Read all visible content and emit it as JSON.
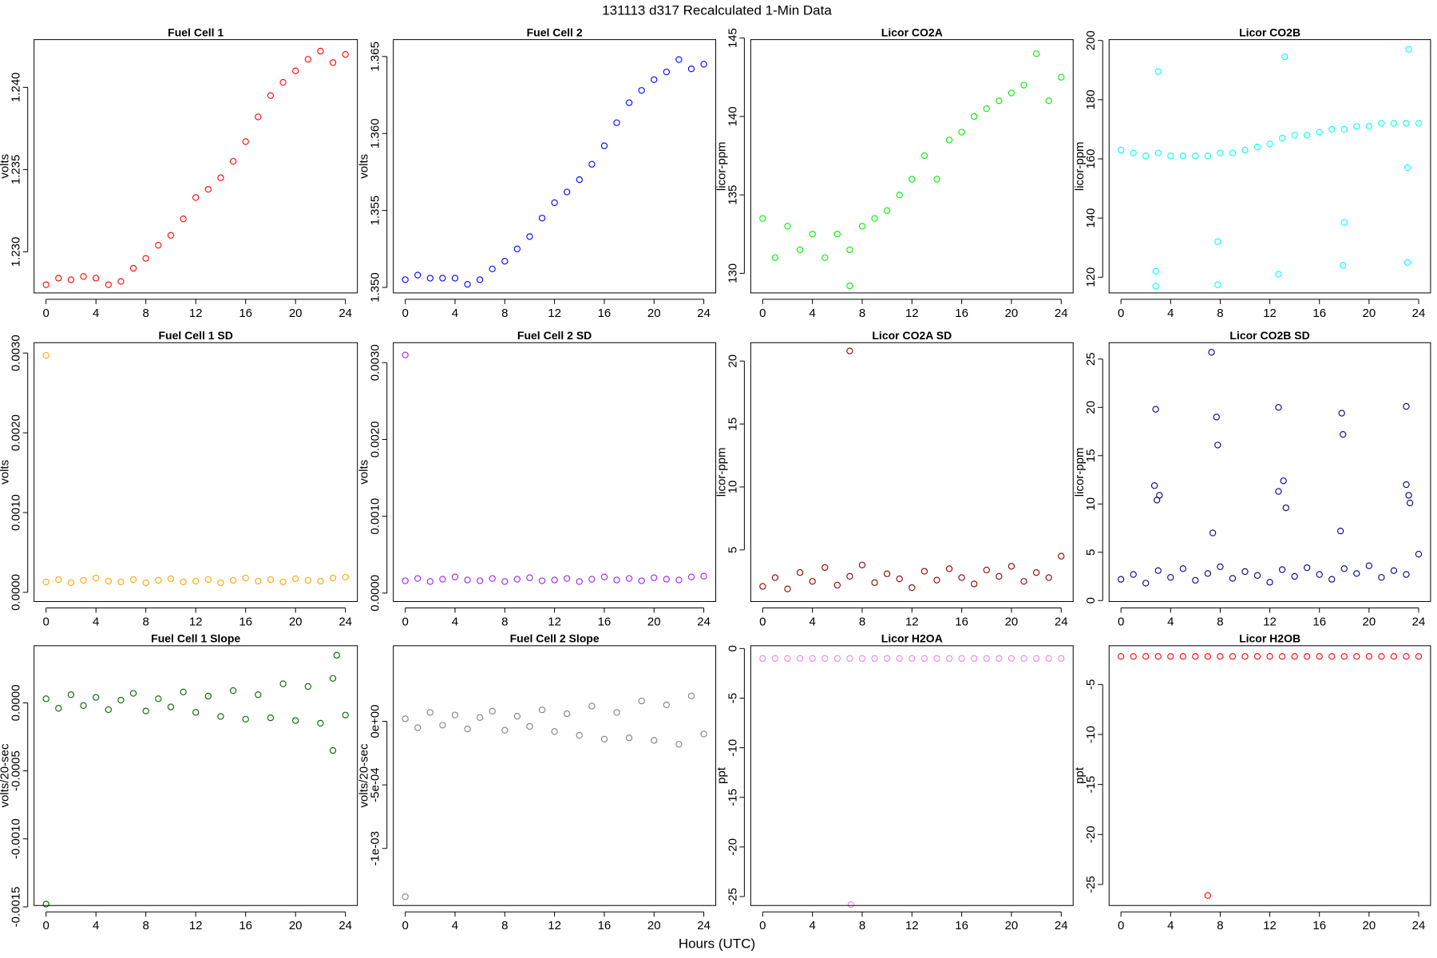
{
  "title": "131113   d317   Recalculated 1-Min Data",
  "xlabel": "Hours (UTC)",
  "chart_data": [
    {
      "type": "scatter",
      "title": "Fuel Cell 1",
      "ylabel": "volts",
      "x": [
        0,
        1,
        2,
        3,
        4,
        5,
        6,
        7,
        8,
        9,
        10,
        11,
        12,
        13,
        14,
        15,
        16,
        17,
        18,
        19,
        20,
        21,
        22,
        23,
        24
      ],
      "series": [
        {
          "color": "#ff0000",
          "values": [
            1.228,
            1.2284,
            1.2283,
            1.2285,
            1.2284,
            1.228,
            1.2282,
            1.229,
            1.2296,
            1.2304,
            1.231,
            1.232,
            1.2333,
            1.2338,
            1.2345,
            1.2355,
            1.2367,
            1.2382,
            1.2395,
            1.2403,
            1.241,
            1.2417,
            1.2422,
            1.2415,
            1.242
          ]
        }
      ],
      "xlim": [
        -0.96,
        24.96
      ],
      "xticks": [
        0,
        4,
        8,
        12,
        16,
        20,
        24
      ],
      "ylim": [
        1.2275,
        1.2429
      ],
      "yticks": [
        {
          "value": 1.23,
          "label": "1.230"
        },
        {
          "value": 1.235,
          "label": "1.235"
        },
        {
          "value": 1.24,
          "label": "1.240"
        }
      ]
    },
    {
      "type": "scatter",
      "title": "Fuel Cell 2",
      "ylabel": "volts",
      "x": [
        0,
        1,
        2,
        3,
        4,
        5,
        6,
        7,
        8,
        9,
        10,
        11,
        12,
        13,
        14,
        15,
        16,
        17,
        18,
        19,
        20,
        21,
        22,
        23,
        24
      ],
      "series": [
        {
          "color": "#0000ff",
          "values": [
            1.3505,
            1.3508,
            1.3506,
            1.3506,
            1.3506,
            1.3502,
            1.3505,
            1.3512,
            1.3517,
            1.3525,
            1.3533,
            1.3545,
            1.3555,
            1.3562,
            1.357,
            1.358,
            1.3592,
            1.3607,
            1.362,
            1.3628,
            1.3635,
            1.364,
            1.3648,
            1.3642,
            1.3645
          ]
        }
      ],
      "xlim": [
        -0.96,
        24.96
      ],
      "xticks": [
        0,
        4,
        8,
        12,
        16,
        20,
        24
      ],
      "ylim": [
        1.34964,
        1.3661
      ],
      "yticks": [
        {
          "value": 1.35,
          "label": "1.350"
        },
        {
          "value": 1.355,
          "label": "1.355"
        },
        {
          "value": 1.36,
          "label": "1.360"
        },
        {
          "value": 1.365,
          "label": "1.365"
        }
      ]
    },
    {
      "type": "scatter",
      "title": "Licor CO2A",
      "ylabel": "licor-ppm",
      "x": [
        0,
        1,
        2,
        3,
        4,
        5,
        6,
        7,
        8,
        9,
        10,
        11,
        12,
        13,
        14,
        15,
        16,
        17,
        18,
        19,
        20,
        21,
        22,
        23,
        24,
        7
      ],
      "series": [
        {
          "color": "#00ee00",
          "values": [
            133.5,
            131,
            133,
            131.5,
            132.5,
            131,
            132.5,
            131.5,
            133,
            133.5,
            134,
            135,
            136,
            137.5,
            136,
            138.5,
            139,
            140,
            140.5,
            141,
            141.5,
            142,
            144,
            141,
            142.5,
            129.2
          ]
        }
      ],
      "xlim": [
        -0.96,
        24.96
      ],
      "xticks": [
        0,
        4,
        8,
        12,
        16,
        20,
        24
      ],
      "ylim": [
        128.75,
        144.9
      ],
      "yticks": [
        130,
        135,
        140,
        145
      ]
    },
    {
      "type": "scatter",
      "title": "Licor CO2B",
      "ylabel": "licor-ppm",
      "x": [
        0,
        1,
        2,
        3,
        4,
        5,
        6,
        7,
        8,
        9,
        10,
        11,
        12,
        13,
        14,
        15,
        16,
        17,
        18,
        19,
        20,
        21,
        22,
        23,
        24,
        2.8,
        3,
        2.8,
        7.8,
        7.8,
        12.7,
        13.2,
        17.9,
        18,
        23.1,
        23.2,
        23.1
      ],
      "series": [
        {
          "color": "#00ffff",
          "values": [
            163,
            162,
            161,
            162,
            161,
            161,
            161,
            161,
            162,
            162,
            163,
            164,
            165,
            167,
            168,
            168,
            169,
            170,
            170,
            171,
            171,
            172,
            172,
            172,
            172,
            117,
            189.5,
            122,
            117.5,
            132,
            121,
            194.5,
            124,
            138.5,
            125,
            197,
            157
          ]
        }
      ],
      "xlim": [
        -0.96,
        24.96
      ],
      "xticks": [
        0,
        4,
        8,
        12,
        16,
        20,
        24
      ],
      "ylim": [
        114.7,
        200.3
      ],
      "yticks": [
        120,
        140,
        160,
        180,
        200
      ]
    },
    {
      "type": "scatter",
      "title": "Fuel Cell 1 SD",
      "ylabel": "volts",
      "x": [
        0,
        1,
        2,
        3,
        4,
        5,
        6,
        7,
        8,
        9,
        10,
        11,
        12,
        13,
        14,
        15,
        16,
        17,
        18,
        19,
        20,
        21,
        22,
        23,
        24,
        0
      ],
      "series": [
        {
          "color": "#ffa500",
          "values": [
            0.00013,
            0.00016,
            0.00012,
            0.00015,
            0.00018,
            0.00014,
            0.00013,
            0.00016,
            0.00012,
            0.00015,
            0.00017,
            0.00013,
            0.00014,
            0.00016,
            0.00012,
            0.00015,
            0.00018,
            0.00014,
            0.00016,
            0.00013,
            0.00017,
            0.00015,
            0.00014,
            0.00018,
            0.00019,
            0.00297
          ]
        }
      ],
      "xlim": [
        -0.96,
        24.96
      ],
      "xticks": [
        0,
        4,
        8,
        12,
        16,
        20,
        24
      ],
      "ylim": [
        -0.000115,
        0.00313
      ],
      "yticks": [
        {
          "value": 0,
          "label": "0.0000"
        },
        {
          "value": 0.001,
          "label": "0.0010"
        },
        {
          "value": 0.002,
          "label": "0.0020"
        },
        {
          "value": 0.003,
          "label": "0.0030"
        }
      ]
    },
    {
      "type": "scatter",
      "title": "Fuel Cell 2 SD",
      "ylabel": "volts",
      "x": [
        0,
        1,
        2,
        3,
        4,
        5,
        6,
        7,
        8,
        9,
        10,
        11,
        12,
        13,
        14,
        15,
        16,
        17,
        18,
        19,
        20,
        21,
        22,
        23,
        24,
        0
      ],
      "series": [
        {
          "color": "#a020f0",
          "values": [
            0.00016,
            0.00019,
            0.00015,
            0.00018,
            0.00021,
            0.00017,
            0.00016,
            0.00019,
            0.00015,
            0.00018,
            0.0002,
            0.00016,
            0.00017,
            0.00019,
            0.00015,
            0.00018,
            0.00021,
            0.00017,
            0.00019,
            0.00016,
            0.0002,
            0.00018,
            0.00017,
            0.00021,
            0.00022,
            0.0031
          ]
        }
      ],
      "xlim": [
        -0.96,
        24.96
      ],
      "xticks": [
        0,
        4,
        8,
        12,
        16,
        20,
        24
      ],
      "ylim": [
        -0.00011,
        0.00326
      ],
      "yticks": [
        {
          "value": 0,
          "label": "0.0000"
        },
        {
          "value": 0.001,
          "label": "0.0010"
        },
        {
          "value": 0.002,
          "label": "0.0020"
        },
        {
          "value": 0.003,
          "label": "0.0030"
        }
      ]
    },
    {
      "type": "scatter",
      "title": "Licor CO2A SD",
      "ylabel": "licor-ppm",
      "x": [
        0,
        1,
        2,
        3,
        4,
        5,
        6,
        7,
        8,
        9,
        10,
        11,
        12,
        13,
        14,
        15,
        16,
        17,
        18,
        19,
        20,
        21,
        22,
        23,
        24,
        7
      ],
      "series": [
        {
          "color": "#8b0000",
          "values": [
            2.1,
            2.8,
            1.9,
            3.2,
            2.5,
            3.6,
            2.2,
            2.9,
            3.8,
            2.4,
            3.1,
            2.7,
            2.0,
            3.3,
            2.6,
            3.5,
            2.8,
            2.3,
            3.4,
            2.9,
            3.7,
            2.5,
            3.2,
            2.8,
            4.5,
            20.8
          ]
        }
      ],
      "xlim": [
        -0.96,
        24.96
      ],
      "xticks": [
        0,
        4,
        8,
        12,
        16,
        20,
        24
      ],
      "ylim": [
        0.9,
        21.46
      ],
      "yticks": [
        5,
        10,
        15,
        20
      ]
    },
    {
      "type": "scatter",
      "title": "Licor CO2B SD",
      "ylabel": "licor-ppm",
      "x": [
        0,
        1,
        2,
        3,
        4,
        5,
        6,
        7,
        8,
        9,
        10,
        11,
        12,
        13,
        14,
        15,
        16,
        17,
        18,
        19,
        20,
        21,
        22,
        23,
        24,
        2.8,
        2.7,
        2.9,
        3.1,
        7.3,
        7.7,
        7.8,
        7.4,
        12.7,
        13.1,
        12.7,
        13.3,
        17.8,
        17.9,
        17.7,
        23,
        23,
        23.2,
        23.3
      ],
      "series": [
        {
          "color": "#00008b",
          "values": [
            2.2,
            2.7,
            1.8,
            3.1,
            2.4,
            3.3,
            2.1,
            2.8,
            3.5,
            2.3,
            3.0,
            2.6,
            1.9,
            3.2,
            2.5,
            3.4,
            2.7,
            2.2,
            3.3,
            2.8,
            3.6,
            2.4,
            3.1,
            2.7,
            4.8,
            19.8,
            11.9,
            10.4,
            10.9,
            25.7,
            19,
            16.1,
            7,
            20,
            12.4,
            11.3,
            9.6,
            19.4,
            17.2,
            7.2,
            20.1,
            12,
            10.9,
            10.1
          ]
        }
      ],
      "xlim": [
        -0.96,
        24.96
      ],
      "xticks": [
        0,
        4,
        8,
        12,
        16,
        20,
        24
      ],
      "ylim": [
        -0.1,
        26.7
      ],
      "yticks": [
        0,
        5,
        10,
        15,
        20,
        25
      ]
    },
    {
      "type": "scatter",
      "title": "Fuel Cell 1 Slope",
      "ylabel": "volts/20-sec",
      "x": [
        0,
        1,
        2,
        3,
        4,
        5,
        6,
        7,
        8,
        9,
        10,
        11,
        12,
        13,
        14,
        15,
        16,
        17,
        18,
        19,
        20,
        21,
        22,
        23,
        24,
        0,
        23,
        23.3
      ],
      "series": [
        {
          "color": "#006400",
          "values": [
            3e-05,
            -4e-05,
            6e-05,
            -2e-05,
            4e-05,
            -5e-05,
            2e-05,
            7e-05,
            -6e-05,
            3e-05,
            -3e-05,
            8e-05,
            -7e-05,
            5e-05,
            -0.0001,
            9e-05,
            -0.00012,
            6e-05,
            -0.00011,
            0.00014,
            -0.00013,
            0.00012,
            -0.00015,
            0.00018,
            -9e-05,
            -0.00148,
            -0.00035,
            0.00035
          ]
        }
      ],
      "xlim": [
        -0.96,
        24.96
      ],
      "xticks": [
        0,
        4,
        8,
        12,
        16,
        20,
        24
      ],
      "ylim": [
        -0.00149,
        0.00042
      ],
      "yticks": [
        {
          "value": -0.0015,
          "label": "-0.0015"
        },
        {
          "value": -0.001,
          "label": "-0.0010"
        },
        {
          "value": -0.0005,
          "label": "-0.0005"
        },
        {
          "value": 0,
          "label": "0.0000"
        }
      ]
    },
    {
      "type": "scatter",
      "title": "Fuel Cell 2 Slope",
      "ylabel": "volts/20-sec",
      "x": [
        0,
        1,
        2,
        3,
        4,
        5,
        6,
        7,
        8,
        9,
        10,
        11,
        12,
        13,
        14,
        15,
        16,
        17,
        18,
        19,
        20,
        21,
        22,
        23,
        24,
        0
      ],
      "series": [
        {
          "color": "#808080",
          "values": [
            2e-05,
            -5e-05,
            7e-05,
            -3e-05,
            5e-05,
            -6e-05,
            3e-05,
            8e-05,
            -7e-05,
            4e-05,
            -4e-05,
            9e-05,
            -8e-05,
            6e-05,
            -0.00011,
            0.00012,
            -0.00014,
            7e-05,
            -0.00013,
            0.00016,
            -0.00015,
            0.00013,
            -0.00018,
            0.0002,
            -0.0001,
            -0.00138
          ]
        }
      ],
      "xlim": [
        -0.96,
        24.96
      ],
      "xticks": [
        0,
        4,
        8,
        12,
        16,
        20,
        24
      ],
      "ylim": [
        -0.001449,
        0.000595
      ],
      "yticks": [
        {
          "value": -0.001,
          "label": "-1e-03"
        },
        {
          "value": -0.0005,
          "label": "-5e-04"
        },
        {
          "value": 0,
          "label": "0e+00"
        }
      ]
    },
    {
      "type": "scatter",
      "title": "Licor H2OA",
      "ylabel": "ppt",
      "x": [
        0,
        1,
        2,
        3,
        4,
        5,
        6,
        7,
        8,
        9,
        10,
        11,
        12,
        13,
        14,
        15,
        16,
        17,
        18,
        19,
        20,
        21,
        22,
        23,
        24,
        7.1
      ],
      "series": [
        {
          "color": "#ee82ee",
          "values": [
            -1,
            -1,
            -1,
            -1,
            -1,
            -1,
            -1,
            -1,
            -1,
            -1,
            -1,
            -1,
            -1,
            -1,
            -1,
            -1,
            -1,
            -1,
            -1,
            -1,
            -1,
            -1,
            -1,
            -1,
            -1,
            -25.8
          ]
        }
      ],
      "xlim": [
        -0.96,
        24.96
      ],
      "xticks": [
        0,
        4,
        8,
        12,
        16,
        20,
        24
      ],
      "ylim": [
        -25.9,
        0.28
      ],
      "yticks": [
        -25,
        -20,
        -15,
        -10,
        -5,
        0
      ]
    },
    {
      "type": "scatter",
      "title": "Licor H2OB",
      "ylabel": "ppt",
      "x": [
        0,
        1,
        2,
        3,
        4,
        5,
        6,
        7,
        8,
        9,
        10,
        11,
        12,
        13,
        14,
        15,
        16,
        17,
        18,
        19,
        20,
        21,
        22,
        23,
        24,
        7
      ],
      "series": [
        {
          "color": "#ff0000",
          "values": [
            -2.2,
            -2.2,
            -2.2,
            -2.2,
            -2.2,
            -2.2,
            -2.2,
            -2.2,
            -2.2,
            -2.2,
            -2.2,
            -2.2,
            -2.2,
            -2.2,
            -2.2,
            -2.2,
            -2.2,
            -2.2,
            -2.2,
            -2.2,
            -2.2,
            -2.2,
            -2.2,
            -2.2,
            -2.2,
            -26.1
          ]
        }
      ],
      "xlim": [
        -0.96,
        24.96
      ],
      "xticks": [
        0,
        4,
        8,
        12,
        16,
        20,
        24
      ],
      "ylim": [
        -27.1,
        -1.13
      ],
      "yticks": [
        -25,
        -20,
        -15,
        -10,
        -5
      ]
    }
  ]
}
